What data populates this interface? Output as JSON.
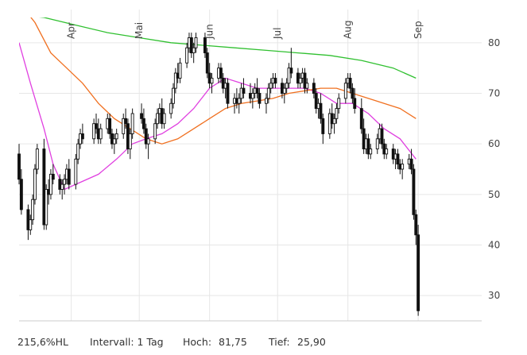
{
  "chart_data": {
    "type": "candlestick",
    "ylim": [
      25,
      85
    ],
    "y_ticks": [
      30,
      40,
      50,
      60,
      70,
      80
    ],
    "y_tick_labels": [
      "30",
      "40",
      "50",
      "60",
      "70",
      "80"
    ],
    "x_month_labels": [
      "Apr",
      "Mai",
      "Jun",
      "Jul",
      "Aug",
      "Sep"
    ],
    "grid": true,
    "grid_color": "#e6e6e6",
    "candle_color": "#111111",
    "up_fill": "#ffffff",
    "date_range": [
      "2023-03-09",
      "2023-09-29"
    ],
    "months": [
      {
        "label": "Apr",
        "date": "2023-04-01"
      },
      {
        "label": "Mai",
        "date": "2023-05-01"
      },
      {
        "label": "Jun",
        "date": "2023-06-01"
      },
      {
        "label": "Jul",
        "date": "2023-07-01"
      },
      {
        "label": "Aug",
        "date": "2023-08-01"
      },
      {
        "label": "Sep",
        "date": "2023-09-01"
      }
    ],
    "candles": [
      [
        "2023-03-09",
        58,
        60,
        52,
        53
      ],
      [
        "2023-03-10",
        53,
        55,
        46,
        47
      ],
      [
        "2023-03-13",
        47,
        48,
        41,
        43
      ],
      [
        "2023-03-14",
        43,
        46,
        42,
        45
      ],
      [
        "2023-03-15",
        45,
        50,
        44,
        49
      ],
      [
        "2023-03-16",
        49,
        56,
        48,
        55
      ],
      [
        "2023-03-17",
        55,
        60,
        54,
        59
      ],
      [
        "2023-03-20",
        59,
        61,
        43,
        44
      ],
      [
        "2023-03-21",
        44,
        52,
        43,
        51
      ],
      [
        "2023-03-22",
        51,
        53,
        48,
        50
      ],
      [
        "2023-03-23",
        50,
        55,
        49,
        54
      ],
      [
        "2023-03-24",
        54,
        56,
        52,
        53
      ],
      [
        "2023-03-27",
        53,
        54,
        50,
        51
      ],
      [
        "2023-03-28",
        51,
        53,
        49,
        52
      ],
      [
        "2023-03-29",
        52,
        54,
        50,
        53
      ],
      [
        "2023-03-30",
        53,
        56,
        52,
        55
      ],
      [
        "2023-03-31",
        55,
        57,
        51,
        52
      ],
      [
        "2023-04-03",
        52,
        58,
        51,
        57
      ],
      [
        "2023-04-04",
        57,
        61,
        56,
        60
      ],
      [
        "2023-04-05",
        60,
        63,
        59,
        62
      ],
      [
        "2023-04-06",
        62,
        64,
        60,
        61
      ],
      [
        "2023-04-11",
        61,
        65,
        60,
        64
      ],
      [
        "2023-04-12",
        64,
        66,
        62,
        63
      ],
      [
        "2023-04-13",
        63,
        65,
        60,
        61
      ],
      [
        "2023-04-14",
        61,
        64,
        60,
        63
      ],
      [
        "2023-04-17",
        63,
        66,
        62,
        65
      ],
      [
        "2023-04-18",
        65,
        66,
        61,
        62
      ],
      [
        "2023-04-19",
        62,
        63,
        59,
        60
      ],
      [
        "2023-04-20",
        60,
        62,
        58,
        61
      ],
      [
        "2023-04-21",
        61,
        63,
        60,
        62
      ],
      [
        "2023-04-24",
        62,
        66,
        61,
        65
      ],
      [
        "2023-04-25",
        65,
        67,
        63,
        64
      ],
      [
        "2023-04-26",
        64,
        65,
        58,
        59
      ],
      [
        "2023-04-27",
        59,
        63,
        57,
        62
      ],
      [
        "2023-04-28",
        62,
        67,
        61,
        66
      ],
      [
        "2023-05-02",
        66,
        68,
        64,
        65
      ],
      [
        "2023-05-03",
        65,
        67,
        62,
        63
      ],
      [
        "2023-05-04",
        63,
        64,
        59,
        60
      ],
      [
        "2023-05-05",
        60,
        62,
        57,
        61
      ],
      [
        "2023-05-08",
        61,
        65,
        60,
        64
      ],
      [
        "2023-05-09",
        64,
        67,
        63,
        66
      ],
      [
        "2023-05-10",
        66,
        68,
        64,
        67
      ],
      [
        "2023-05-11",
        67,
        69,
        63,
        64
      ],
      [
        "2023-05-12",
        64,
        67,
        63,
        66
      ],
      [
        "2023-05-15",
        66,
        69,
        65,
        68
      ],
      [
        "2023-05-16",
        68,
        72,
        67,
        71
      ],
      [
        "2023-05-17",
        71,
        75,
        70,
        74
      ],
      [
        "2023-05-18",
        74,
        76,
        72,
        73
      ],
      [
        "2023-05-19",
        73,
        77,
        72,
        76
      ],
      [
        "2023-05-22",
        76,
        80,
        75,
        79
      ],
      [
        "2023-05-23",
        79,
        82,
        78,
        81
      ],
      [
        "2023-05-24",
        81,
        82,
        77,
        78
      ],
      [
        "2023-05-25",
        78,
        80,
        76,
        79
      ],
      [
        "2023-05-26",
        79,
        82,
        78,
        81
      ],
      [
        "2023-05-30",
        81,
        82,
        77,
        78
      ],
      [
        "2023-05-31",
        78,
        79,
        73,
        74
      ],
      [
        "2023-06-01",
        74,
        76,
        71,
        72
      ],
      [
        "2023-06-02",
        72,
        74,
        70,
        73
      ],
      [
        "2023-06-05",
        73,
        76,
        72,
        75
      ],
      [
        "2023-06-06",
        75,
        76,
        72,
        73
      ],
      [
        "2023-06-07",
        73,
        74,
        70,
        71
      ],
      [
        "2023-06-08",
        71,
        73,
        69,
        72
      ],
      [
        "2023-06-09",
        72,
        73,
        67,
        68
      ],
      [
        "2023-06-12",
        68,
        70,
        66,
        69
      ],
      [
        "2023-06-13",
        69,
        71,
        67,
        68
      ],
      [
        "2023-06-14",
        68,
        70,
        66,
        69
      ],
      [
        "2023-06-15",
        69,
        72,
        68,
        71
      ],
      [
        "2023-06-16",
        71,
        73,
        69,
        70
      ],
      [
        "2023-06-19",
        70,
        72,
        68,
        69
      ],
      [
        "2023-06-20",
        69,
        71,
        67,
        70
      ],
      [
        "2023-06-21",
        70,
        72,
        69,
        71
      ],
      [
        "2023-06-22",
        71,
        73,
        69,
        70
      ],
      [
        "2023-06-23",
        70,
        71,
        67,
        68
      ],
      [
        "2023-06-26",
        68,
        70,
        66,
        69
      ],
      [
        "2023-06-27",
        69,
        72,
        68,
        71
      ],
      [
        "2023-06-28",
        71,
        73,
        70,
        72
      ],
      [
        "2023-06-29",
        72,
        74,
        71,
        73
      ],
      [
        "2023-06-30",
        73,
        74,
        71,
        72
      ],
      [
        "2023-07-03",
        72,
        73,
        69,
        70
      ],
      [
        "2023-07-04",
        70,
        72,
        68,
        71
      ],
      [
        "2023-07-05",
        71,
        73,
        70,
        72
      ],
      [
        "2023-07-06",
        72,
        76,
        71,
        75
      ],
      [
        "2023-07-07",
        75,
        79,
        73,
        74
      ],
      [
        "2023-07-10",
        74,
        75,
        71,
        72
      ],
      [
        "2023-07-11",
        72,
        74,
        71,
        73
      ],
      [
        "2023-07-12",
        73,
        75,
        72,
        74
      ],
      [
        "2023-07-13",
        74,
        75,
        70,
        71
      ],
      [
        "2023-07-14",
        71,
        73,
        70,
        72
      ],
      [
        "2023-07-17",
        72,
        73,
        69,
        70
      ],
      [
        "2023-07-18",
        70,
        71,
        66,
        67
      ],
      [
        "2023-07-19",
        67,
        69,
        65,
        68
      ],
      [
        "2023-07-20",
        68,
        70,
        64,
        65
      ],
      [
        "2023-07-21",
        65,
        66,
        60,
        62
      ],
      [
        "2023-07-24",
        62,
        67,
        61,
        66
      ],
      [
        "2023-07-25",
        66,
        68,
        63,
        64
      ],
      [
        "2023-07-26",
        64,
        66,
        62,
        65
      ],
      [
        "2023-07-27",
        65,
        68,
        64,
        67
      ],
      [
        "2023-07-28",
        67,
        70,
        66,
        69
      ],
      [
        "2023-07-31",
        69,
        73,
        68,
        72
      ],
      [
        "2023-08-01",
        72,
        74,
        71,
        73
      ],
      [
        "2023-08-02",
        73,
        74,
        70,
        71
      ],
      [
        "2023-08-03",
        71,
        72,
        68,
        69
      ],
      [
        "2023-08-04",
        69,
        71,
        66,
        67
      ],
      [
        "2023-08-07",
        67,
        69,
        62,
        63
      ],
      [
        "2023-08-08",
        63,
        65,
        58,
        59
      ],
      [
        "2023-08-09",
        59,
        62,
        58,
        61
      ],
      [
        "2023-08-10",
        61,
        62,
        57,
        58
      ],
      [
        "2023-08-11",
        58,
        60,
        57,
        59
      ],
      [
        "2023-08-14",
        59,
        62,
        58,
        61
      ],
      [
        "2023-08-15",
        61,
        64,
        60,
        63
      ],
      [
        "2023-08-16",
        63,
        64,
        59,
        60
      ],
      [
        "2023-08-17",
        60,
        61,
        57,
        58
      ],
      [
        "2023-08-18",
        58,
        60,
        57,
        59
      ],
      [
        "2023-08-21",
        59,
        60,
        56,
        57
      ],
      [
        "2023-08-22",
        57,
        59,
        55,
        58
      ],
      [
        "2023-08-23",
        58,
        59,
        55,
        56
      ],
      [
        "2023-08-24",
        56,
        57,
        54,
        55
      ],
      [
        "2023-08-25",
        55,
        57,
        53,
        56
      ],
      [
        "2023-08-28",
        56,
        58,
        55,
        57
      ],
      [
        "2023-08-29",
        57,
        59,
        54,
        55
      ],
      [
        "2023-08-30",
        55,
        56,
        45,
        46
      ],
      [
        "2023-08-31",
        46,
        47,
        40,
        42
      ],
      [
        "2023-09-01",
        42,
        44,
        26,
        27
      ]
    ],
    "moving_averages": [
      {
        "color": "#e040e0",
        "values": [
          [
            "2023-03-09",
            80
          ],
          [
            "2023-03-14",
            72
          ],
          [
            "2023-03-20",
            63
          ],
          [
            "2023-03-24",
            56
          ],
          [
            "2023-03-29",
            51
          ],
          [
            "2023-04-03",
            52
          ],
          [
            "2023-04-13",
            54
          ],
          [
            "2023-04-21",
            57
          ],
          [
            "2023-04-28",
            60
          ],
          [
            "2023-05-04",
            61
          ],
          [
            "2023-05-11",
            62
          ],
          [
            "2023-05-18",
            64
          ],
          [
            "2023-05-25",
            67
          ],
          [
            "2023-06-01",
            71
          ],
          [
            "2023-06-08",
            73
          ],
          [
            "2023-06-15",
            72
          ],
          [
            "2023-06-22",
            71
          ],
          [
            "2023-06-29",
            71
          ],
          [
            "2023-07-06",
            71
          ],
          [
            "2023-07-13",
            71
          ],
          [
            "2023-07-20",
            70
          ],
          [
            "2023-07-27",
            68
          ],
          [
            "2023-08-03",
            68
          ],
          [
            "2023-08-10",
            66
          ],
          [
            "2023-08-17",
            63
          ],
          [
            "2023-08-24",
            61
          ],
          [
            "2023-08-31",
            57
          ]
        ]
      },
      {
        "color": "#f07020",
        "values": [
          [
            "2023-03-09",
            88
          ],
          [
            "2023-03-16",
            84
          ],
          [
            "2023-03-23",
            78
          ],
          [
            "2023-03-30",
            75
          ],
          [
            "2023-04-06",
            72
          ],
          [
            "2023-04-13",
            68
          ],
          [
            "2023-04-20",
            65
          ],
          [
            "2023-04-27",
            63
          ],
          [
            "2023-05-04",
            61
          ],
          [
            "2023-05-11",
            60
          ],
          [
            "2023-05-18",
            61
          ],
          [
            "2023-05-25",
            63
          ],
          [
            "2023-06-01",
            65
          ],
          [
            "2023-06-08",
            67
          ],
          [
            "2023-06-15",
            68
          ],
          [
            "2023-06-22",
            68.5
          ],
          [
            "2023-06-29",
            69
          ],
          [
            "2023-07-06",
            70
          ],
          [
            "2023-07-13",
            70.5
          ],
          [
            "2023-07-20",
            71
          ],
          [
            "2023-07-27",
            71
          ],
          [
            "2023-08-03",
            70
          ],
          [
            "2023-08-10",
            69
          ],
          [
            "2023-08-17",
            68
          ],
          [
            "2023-08-24",
            67
          ],
          [
            "2023-08-31",
            65
          ]
        ]
      },
      {
        "color": "#30c030",
        "values": [
          [
            "2023-03-09",
            85.5
          ],
          [
            "2023-03-20",
            85
          ],
          [
            "2023-04-03",
            83.5
          ],
          [
            "2023-04-17",
            82
          ],
          [
            "2023-05-01",
            81
          ],
          [
            "2023-05-15",
            80
          ],
          [
            "2023-05-29",
            79.5
          ],
          [
            "2023-06-12",
            79
          ],
          [
            "2023-06-26",
            78.5
          ],
          [
            "2023-07-10",
            78
          ],
          [
            "2023-07-24",
            77.5
          ],
          [
            "2023-08-07",
            76.5
          ],
          [
            "2023-08-21",
            75
          ],
          [
            "2023-08-31",
            73
          ]
        ]
      }
    ]
  },
  "footer": {
    "range_label": "215,6%HL",
    "interval_label": "Intervall: 1 Tag",
    "high_label": "Hoch:",
    "high_value": "81,75",
    "low_label": "Tief:",
    "low_value": "25,90"
  }
}
